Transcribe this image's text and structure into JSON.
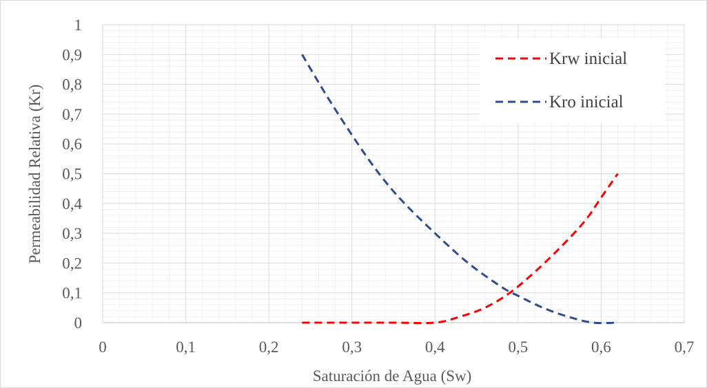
{
  "chart_data": {
    "type": "line",
    "xlabel": "Saturación de Agua (Sw)",
    "ylabel": "Permeabilidad Relativa (Kr)",
    "xlim": [
      0,
      0.7
    ],
    "ylim": [
      0,
      1
    ],
    "x_ticks": [
      "0",
      "0,1",
      "0,2",
      "0,3",
      "0,4",
      "0,5",
      "0,6",
      "0,7"
    ],
    "y_ticks": [
      "0",
      "0,1",
      "0,2",
      "0,3",
      "0,4",
      "0,5",
      "0,6",
      "0,7",
      "0,8",
      "0,9",
      "1"
    ],
    "grid": true,
    "legend_position": "top-right",
    "series": [
      {
        "name": "Krw inicial",
        "color": "#ff0000",
        "dash": "dashed",
        "x": [
          0.24,
          0.3,
          0.35,
          0.4,
          0.43,
          0.46,
          0.49,
          0.52,
          0.55,
          0.58,
          0.6,
          0.62
        ],
        "y": [
          0.0,
          0.0,
          0.0,
          0.0,
          0.02,
          0.05,
          0.1,
          0.17,
          0.25,
          0.34,
          0.42,
          0.5
        ]
      },
      {
        "name": "Kro inicial",
        "color": "#2f4b8f",
        "dash": "dashed",
        "x": [
          0.24,
          0.27,
          0.3,
          0.33,
          0.36,
          0.4,
          0.44,
          0.48,
          0.5,
          0.53,
          0.56,
          0.59,
          0.62
        ],
        "y": [
          0.9,
          0.76,
          0.63,
          0.51,
          0.41,
          0.3,
          0.2,
          0.12,
          0.09,
          0.05,
          0.02,
          0.0,
          0.0
        ]
      }
    ]
  }
}
